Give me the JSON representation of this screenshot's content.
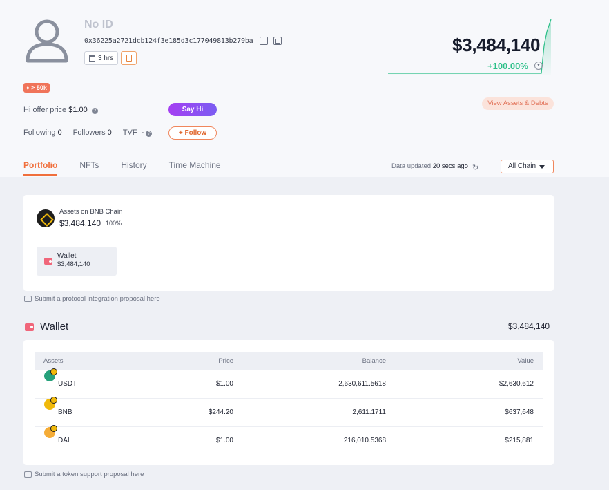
{
  "profile": {
    "name": "No ID",
    "address": "0x36225a2721dcb124f3e185d3c177049813b279ba",
    "age_chip": "3 hrs",
    "badge": "> 50k",
    "offer_label": "Hi offer price",
    "offer_value": "$1.00",
    "say_hi_label": "Say Hi",
    "following_label": "Following",
    "following_count": "0",
    "followers_label": "Followers",
    "followers_count": "0",
    "tvf_label": "TVF",
    "tvf_value": "-",
    "follow_label": "+ Follow"
  },
  "summary": {
    "total": "$3,484,140",
    "change": "+100.00%",
    "view_assets_label": "View Assets & Debts"
  },
  "tabs": [
    "Portfolio",
    "NFTs",
    "History",
    "Time Machine"
  ],
  "status": {
    "updated_prefix": "Data updated",
    "updated_value": "20 secs ago",
    "chain_select": "All Chain"
  },
  "chain_card": {
    "title": "Assets on BNB Chain",
    "value": "$3,484,140",
    "percent": "100%",
    "wallet_label": "Wallet",
    "wallet_value": "$3,484,140"
  },
  "protocol_proposal": "Submit a protocol integration proposal here",
  "wallet_section": {
    "title": "Wallet",
    "total": "$3,484,140",
    "headers": {
      "asset": "Assets",
      "price": "Price",
      "balance": "Balance",
      "value": "Value"
    },
    "rows": [
      {
        "asset": "USDT",
        "price": "$1.00",
        "balance": "2,630,611.5618",
        "value": "$2,630,612",
        "color": "#26a17b"
      },
      {
        "asset": "BNB",
        "price": "$244.20",
        "balance": "2,611.1711",
        "value": "$637,648",
        "color": "#f0b90b"
      },
      {
        "asset": "DAI",
        "price": "$1.00",
        "balance": "216,010.5368",
        "value": "$215,881",
        "color": "#f5ac37"
      }
    ]
  },
  "token_proposal": "Submit a token support proposal here"
}
